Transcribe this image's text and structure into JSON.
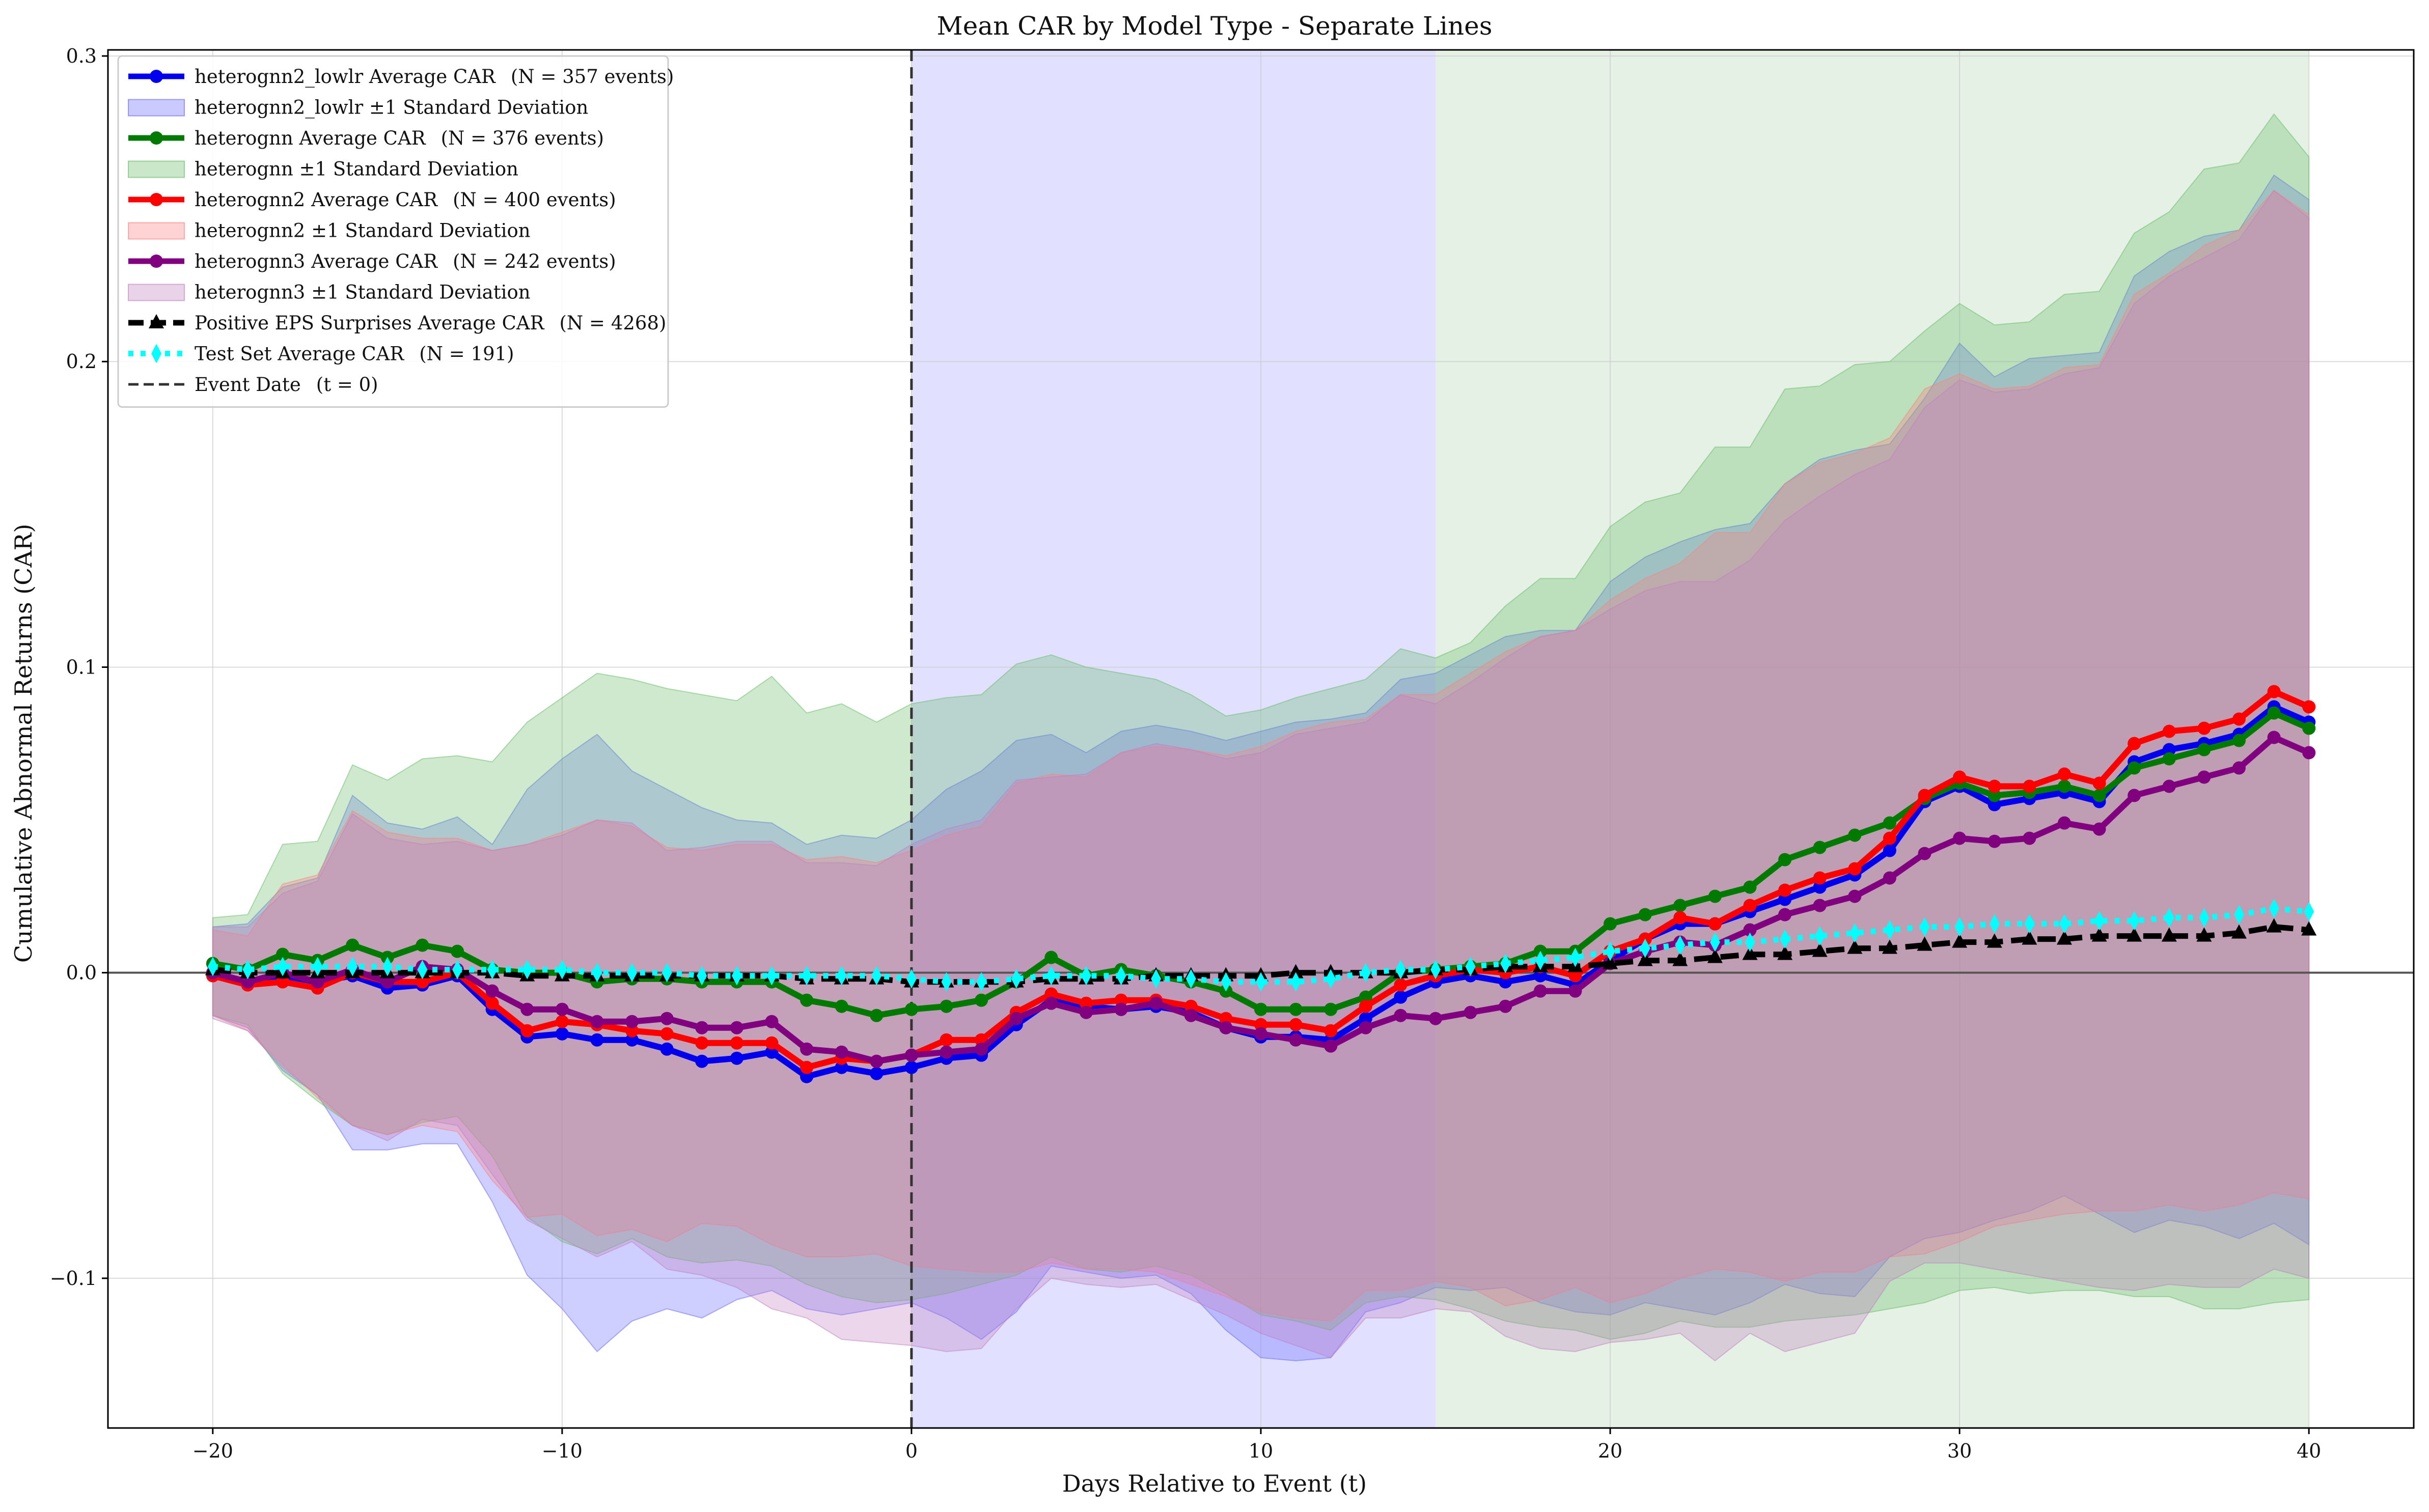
{
  "chart_data": {
    "type": "line",
    "title": "Mean CAR by Model Type - Separate Lines",
    "xlabel": "Days Relative to Event (t)",
    "ylabel": "Cumulative Abnormal Returns (CAR)",
    "xlim": [
      -23,
      43
    ],
    "ylim": [
      -0.149,
      0.302
    ],
    "xticks": [
      -20,
      -10,
      0,
      10,
      20,
      30,
      40
    ],
    "xtick_labels": [
      "−20",
      "−10",
      "0",
      "10",
      "20",
      "30",
      "40"
    ],
    "yticks": [
      -0.1,
      0.0,
      0.1,
      0.2,
      0.3
    ],
    "ytick_labels": [
      "−0.1",
      "0.0",
      "0.1",
      "0.2",
      "0.3"
    ],
    "grid": true,
    "legend_position": "top-left",
    "shaded_regions": [
      {
        "from": 0,
        "to": 15,
        "color": "#c9c9ff"
      },
      {
        "from": 15,
        "to": 40,
        "color": "#d0e6d0"
      }
    ],
    "event_line": {
      "x": 0,
      "label": "Event Date (t = 0)",
      "color": "#333333"
    },
    "x": [
      -20,
      -19,
      -18,
      -17,
      -16,
      -15,
      -14,
      -13,
      -12,
      -11,
      -10,
      -9,
      -8,
      -7,
      -6,
      -5,
      -4,
      -3,
      -2,
      -1,
      0,
      1,
      2,
      3,
      4,
      5,
      6,
      7,
      8,
      9,
      10,
      11,
      12,
      13,
      14,
      15,
      16,
      17,
      18,
      19,
      20,
      21,
      22,
      23,
      24,
      25,
      26,
      27,
      28,
      29,
      30,
      31,
      32,
      33,
      34,
      35,
      36,
      37,
      38,
      39,
      40
    ],
    "series": [
      {
        "name": "heterognn2_lowlr Average CAR",
        "n_label": "(N = 357 events)",
        "band_label": "heterognn2_lowlr ±1 Standard Deviation",
        "color": "#0000ee",
        "band_color": "#6666ff",
        "values": [
          0.0,
          -0.003,
          -0.002,
          -0.003,
          -0.001,
          -0.005,
          -0.004,
          -0.001,
          -0.012,
          -0.021,
          -0.02,
          -0.022,
          -0.022,
          -0.025,
          -0.029,
          -0.028,
          -0.026,
          -0.034,
          -0.031,
          -0.033,
          -0.031,
          -0.028,
          -0.027,
          -0.017,
          -0.009,
          -0.011,
          -0.012,
          -0.011,
          -0.013,
          -0.018,
          -0.021,
          -0.021,
          -0.022,
          -0.015,
          -0.008,
          -0.003,
          -0.001,
          -0.003,
          -0.001,
          -0.004,
          0.004,
          0.011,
          0.016,
          0.016,
          0.02,
          0.024,
          0.028,
          0.032,
          0.04,
          0.056,
          0.061,
          0.055,
          0.057,
          0.059,
          0.056,
          0.069,
          0.073,
          0.075,
          0.078,
          0.087,
          0.082
        ],
        "upper": [
          0.015,
          0.016,
          0.028,
          0.031,
          0.058,
          0.049,
          0.047,
          0.051,
          0.042,
          0.06,
          0.07,
          0.078,
          0.066,
          0.06,
          0.054,
          0.05,
          0.049,
          0.042,
          0.045,
          0.044,
          0.05,
          0.06,
          0.066,
          0.076,
          0.078,
          0.072,
          0.079,
          0.081,
          0.079,
          0.076,
          0.079,
          0.082,
          0.083,
          0.085,
          0.096,
          0.098,
          0.104,
          0.11,
          0.112,
          0.112,
          0.128,
          0.136,
          0.141,
          0.145,
          0.147,
          0.16,
          0.168,
          0.171,
          0.173,
          0.188,
          0.206,
          0.195,
          0.201,
          0.202,
          0.203,
          0.228,
          0.236,
          0.241,
          0.243,
          0.261,
          0.253
        ],
        "lower": [
          -0.014,
          -0.018,
          -0.032,
          -0.04,
          -0.058,
          -0.058,
          -0.056,
          -0.056,
          -0.075,
          -0.099,
          -0.11,
          -0.124,
          -0.114,
          -0.11,
          -0.113,
          -0.107,
          -0.104,
          -0.11,
          -0.112,
          -0.11,
          -0.108,
          -0.113,
          -0.12,
          -0.111,
          -0.096,
          -0.098,
          -0.1,
          -0.099,
          -0.105,
          -0.117,
          -0.126,
          -0.127,
          -0.126,
          -0.111,
          -0.108,
          -0.103,
          -0.104,
          -0.103,
          -0.108,
          -0.111,
          -0.112,
          -0.108,
          -0.11,
          -0.112,
          -0.108,
          -0.102,
          -0.105,
          -0.106,
          -0.093,
          -0.087,
          -0.085,
          -0.081,
          -0.078,
          -0.073,
          -0.079,
          -0.085,
          -0.081,
          -0.083,
          -0.087,
          -0.082,
          -0.089
        ]
      },
      {
        "name": "heterognn Average CAR",
        "n_label": "(N = 376 events)",
        "band_label": "heterognn ±1 Standard Deviation",
        "color": "#007a00",
        "band_color": "#66bb66",
        "values": [
          0.003,
          0.001,
          0.006,
          0.004,
          0.009,
          0.005,
          0.009,
          0.007,
          0.001,
          0.0,
          0.0,
          -0.003,
          -0.002,
          -0.002,
          -0.003,
          -0.003,
          -0.003,
          -0.009,
          -0.011,
          -0.014,
          -0.012,
          -0.011,
          -0.009,
          -0.003,
          0.005,
          -0.001,
          0.001,
          -0.001,
          -0.003,
          -0.006,
          -0.012,
          -0.012,
          -0.012,
          -0.008,
          0.0,
          0.001,
          0.002,
          0.003,
          0.007,
          0.007,
          0.016,
          0.019,
          0.022,
          0.025,
          0.028,
          0.037,
          0.041,
          0.045,
          0.049,
          0.057,
          0.062,
          0.058,
          0.059,
          0.061,
          0.058,
          0.067,
          0.07,
          0.073,
          0.076,
          0.085,
          0.08
        ],
        "upper": [
          0.018,
          0.019,
          0.042,
          0.043,
          0.068,
          0.063,
          0.07,
          0.071,
          0.069,
          0.082,
          0.09,
          0.098,
          0.096,
          0.093,
          0.091,
          0.089,
          0.097,
          0.085,
          0.088,
          0.082,
          0.088,
          0.09,
          0.091,
          0.101,
          0.104,
          0.1,
          0.098,
          0.096,
          0.091,
          0.084,
          0.086,
          0.09,
          0.093,
          0.096,
          0.106,
          0.103,
          0.108,
          0.12,
          0.129,
          0.129,
          0.146,
          0.154,
          0.157,
          0.172,
          0.172,
          0.191,
          0.192,
          0.199,
          0.2,
          0.21,
          0.219,
          0.212,
          0.213,
          0.222,
          0.223,
          0.242,
          0.249,
          0.263,
          0.265,
          0.281,
          0.267
        ],
        "lower": [
          -0.014,
          -0.017,
          -0.033,
          -0.042,
          -0.05,
          -0.053,
          -0.049,
          -0.047,
          -0.06,
          -0.08,
          -0.088,
          -0.092,
          -0.087,
          -0.093,
          -0.095,
          -0.094,
          -0.096,
          -0.102,
          -0.106,
          -0.108,
          -0.107,
          -0.105,
          -0.102,
          -0.099,
          -0.093,
          -0.097,
          -0.098,
          -0.096,
          -0.099,
          -0.105,
          -0.112,
          -0.114,
          -0.117,
          -0.108,
          -0.106,
          -0.107,
          -0.11,
          -0.114,
          -0.116,
          -0.117,
          -0.12,
          -0.118,
          -0.114,
          -0.116,
          -0.116,
          -0.114,
          -0.113,
          -0.112,
          -0.11,
          -0.108,
          -0.104,
          -0.103,
          -0.105,
          -0.104,
          -0.104,
          -0.106,
          -0.106,
          -0.11,
          -0.11,
          -0.108,
          -0.107
        ]
      },
      {
        "name": "heterognn2 Average CAR",
        "n_label": "(N = 400 events)",
        "band_label": "heterognn2 ±1 Standard Deviation",
        "color": "#ff0000",
        "band_color": "#ff8080",
        "values": [
          -0.001,
          -0.004,
          -0.003,
          -0.005,
          0.0,
          -0.003,
          -0.003,
          0.0,
          -0.01,
          -0.019,
          -0.016,
          -0.017,
          -0.019,
          -0.02,
          -0.023,
          -0.023,
          -0.023,
          -0.031,
          -0.028,
          -0.029,
          -0.027,
          -0.022,
          -0.022,
          -0.013,
          -0.007,
          -0.01,
          -0.009,
          -0.009,
          -0.011,
          -0.015,
          -0.017,
          -0.017,
          -0.019,
          -0.011,
          -0.004,
          -0.001,
          0.001,
          0.0,
          0.002,
          -0.001,
          0.007,
          0.011,
          0.018,
          0.016,
          0.022,
          0.027,
          0.031,
          0.034,
          0.044,
          0.058,
          0.064,
          0.061,
          0.061,
          0.065,
          0.062,
          0.075,
          0.079,
          0.08,
          0.083,
          0.092,
          0.087
        ],
        "upper": [
          0.014,
          0.012,
          0.029,
          0.032,
          0.053,
          0.046,
          0.044,
          0.044,
          0.04,
          0.042,
          0.046,
          0.05,
          0.048,
          0.041,
          0.04,
          0.042,
          0.042,
          0.037,
          0.038,
          0.036,
          0.04,
          0.045,
          0.048,
          0.062,
          0.065,
          0.064,
          0.072,
          0.074,
          0.073,
          0.071,
          0.074,
          0.079,
          0.082,
          0.083,
          0.091,
          0.091,
          0.098,
          0.105,
          0.11,
          0.112,
          0.122,
          0.129,
          0.134,
          0.144,
          0.144,
          0.16,
          0.167,
          0.17,
          0.175,
          0.191,
          0.196,
          0.191,
          0.192,
          0.198,
          0.199,
          0.222,
          0.229,
          0.238,
          0.243,
          0.256,
          0.248
        ],
        "lower": [
          -0.014,
          -0.019,
          -0.03,
          -0.041,
          -0.05,
          -0.053,
          -0.05,
          -0.052,
          -0.068,
          -0.08,
          -0.079,
          -0.086,
          -0.084,
          -0.088,
          -0.082,
          -0.083,
          -0.089,
          -0.093,
          -0.093,
          -0.092,
          -0.096,
          -0.097,
          -0.098,
          -0.098,
          -0.095,
          -0.097,
          -0.097,
          -0.098,
          -0.102,
          -0.106,
          -0.111,
          -0.113,
          -0.114,
          -0.104,
          -0.104,
          -0.101,
          -0.103,
          -0.109,
          -0.107,
          -0.103,
          -0.108,
          -0.105,
          -0.1,
          -0.097,
          -0.098,
          -0.101,
          -0.098,
          -0.098,
          -0.093,
          -0.092,
          -0.088,
          -0.083,
          -0.081,
          -0.079,
          -0.078,
          -0.078,
          -0.076,
          -0.078,
          -0.076,
          -0.072,
          -0.074
        ]
      },
      {
        "name": "heterognn3 Average CAR",
        "n_label": "(N = 242 events)",
        "band_label": "heterognn3 ±1 Standard Deviation",
        "color": "#800080",
        "band_color": "#c080c0",
        "values": [
          0.0,
          -0.003,
          0.0,
          -0.003,
          0.001,
          -0.003,
          0.002,
          0.001,
          -0.006,
          -0.012,
          -0.012,
          -0.016,
          -0.016,
          -0.015,
          -0.018,
          -0.018,
          -0.016,
          -0.025,
          -0.026,
          -0.029,
          -0.027,
          -0.026,
          -0.025,
          -0.015,
          -0.01,
          -0.013,
          -0.012,
          -0.01,
          -0.014,
          -0.018,
          -0.02,
          -0.022,
          -0.024,
          -0.018,
          -0.014,
          -0.015,
          -0.013,
          -0.011,
          -0.006,
          -0.006,
          0.003,
          0.007,
          0.01,
          0.009,
          0.014,
          0.019,
          0.022,
          0.025,
          0.031,
          0.039,
          0.044,
          0.043,
          0.044,
          0.049,
          0.047,
          0.058,
          0.061,
          0.064,
          0.067,
          0.077,
          0.072
        ],
        "upper": [
          0.015,
          0.015,
          0.026,
          0.03,
          0.052,
          0.044,
          0.042,
          0.043,
          0.04,
          0.042,
          0.045,
          0.05,
          0.049,
          0.04,
          0.041,
          0.043,
          0.043,
          0.036,
          0.036,
          0.035,
          0.042,
          0.047,
          0.05,
          0.063,
          0.064,
          0.065,
          0.072,
          0.075,
          0.073,
          0.07,
          0.072,
          0.078,
          0.08,
          0.082,
          0.091,
          0.088,
          0.095,
          0.103,
          0.11,
          0.112,
          0.119,
          0.125,
          0.128,
          0.128,
          0.135,
          0.148,
          0.156,
          0.163,
          0.168,
          0.185,
          0.194,
          0.19,
          0.191,
          0.196,
          0.198,
          0.219,
          0.228,
          0.234,
          0.24,
          0.256,
          0.247
        ],
        "lower": [
          -0.015,
          -0.019,
          -0.031,
          -0.04,
          -0.05,
          -0.055,
          -0.048,
          -0.05,
          -0.066,
          -0.081,
          -0.087,
          -0.093,
          -0.088,
          -0.097,
          -0.099,
          -0.103,
          -0.11,
          -0.113,
          -0.12,
          -0.121,
          -0.122,
          -0.124,
          -0.123,
          -0.11,
          -0.1,
          -0.102,
          -0.103,
          -0.102,
          -0.107,
          -0.112,
          -0.118,
          -0.122,
          -0.126,
          -0.113,
          -0.113,
          -0.11,
          -0.111,
          -0.119,
          -0.123,
          -0.124,
          -0.121,
          -0.12,
          -0.118,
          -0.127,
          -0.118,
          -0.124,
          -0.121,
          -0.118,
          -0.101,
          -0.095,
          -0.095,
          -0.097,
          -0.099,
          -0.101,
          -0.103,
          -0.104,
          -0.102,
          -0.103,
          -0.103,
          -0.097,
          -0.1
        ]
      },
      {
        "name": "Positive EPS Surprises Average CAR",
        "n_label": "(N = 4268)",
        "color": "#000000",
        "marker": "triangle",
        "dash": "dashed",
        "values": [
          0.001,
          0.0,
          0.0,
          0.0,
          0.0,
          0.0,
          0.0,
          0.0,
          0.0,
          -0.001,
          -0.001,
          -0.001,
          -0.001,
          -0.001,
          -0.001,
          -0.001,
          -0.001,
          -0.002,
          -0.002,
          -0.002,
          -0.003,
          -0.003,
          -0.003,
          -0.003,
          -0.002,
          -0.002,
          -0.002,
          -0.001,
          -0.001,
          -0.001,
          -0.001,
          0.0,
          0.0,
          0.0,
          0.0,
          0.001,
          0.001,
          0.002,
          0.002,
          0.002,
          0.003,
          0.004,
          0.004,
          0.005,
          0.006,
          0.006,
          0.007,
          0.008,
          0.008,
          0.009,
          0.01,
          0.01,
          0.011,
          0.011,
          0.012,
          0.012,
          0.012,
          0.012,
          0.013,
          0.015,
          0.014
        ]
      },
      {
        "name": "Test Set Average CAR",
        "n_label": "(N = 191)",
        "color": "#00ffff",
        "marker": "diamond",
        "dash": "dotted",
        "values": [
          0.002,
          0.001,
          0.002,
          0.002,
          0.002,
          0.002,
          0.001,
          0.001,
          0.001,
          0.001,
          0.001,
          0.0,
          0.0,
          0.0,
          -0.001,
          -0.001,
          -0.001,
          -0.001,
          -0.001,
          -0.001,
          -0.002,
          -0.003,
          -0.003,
          -0.002,
          -0.001,
          -0.001,
          -0.001,
          -0.002,
          -0.002,
          -0.003,
          -0.003,
          -0.003,
          -0.002,
          0.0,
          0.001,
          0.001,
          0.002,
          0.003,
          0.004,
          0.005,
          0.007,
          0.008,
          0.009,
          0.01,
          0.01,
          0.011,
          0.012,
          0.013,
          0.014,
          0.015,
          0.015,
          0.016,
          0.016,
          0.016,
          0.017,
          0.017,
          0.018,
          0.018,
          0.019,
          0.021,
          0.02
        ]
      }
    ],
    "legend_entries": [
      {
        "kind": "line",
        "label": "heterognn2_lowlr Average CAR",
        "n": "(N = 357 events)",
        "color": "#0000ee",
        "marker": "circle"
      },
      {
        "kind": "band",
        "label": "heterognn2_lowlr ±1 Standard Deviation",
        "n": "",
        "color": "#6666ff"
      },
      {
        "kind": "line",
        "label": "heterognn Average CAR",
        "n": "(N = 376 events)",
        "color": "#007a00",
        "marker": "circle"
      },
      {
        "kind": "band",
        "label": "heterognn ±1 Standard Deviation",
        "n": "",
        "color": "#66bb66"
      },
      {
        "kind": "line",
        "label": "heterognn2 Average CAR",
        "n": "(N = 400 events)",
        "color": "#ff0000",
        "marker": "circle"
      },
      {
        "kind": "band",
        "label": "heterognn2 ±1 Standard Deviation",
        "n": "",
        "color": "#ff8080"
      },
      {
        "kind": "line",
        "label": "heterognn3 Average CAR",
        "n": "(N = 242 events)",
        "color": "#800080",
        "marker": "circle"
      },
      {
        "kind": "band",
        "label": "heterognn3 ±1 Standard Deviation",
        "n": "",
        "color": "#c080c0"
      },
      {
        "kind": "line",
        "label": "Positive EPS Surprises Average CAR",
        "n": "(N = 4268)",
        "color": "#000000",
        "marker": "triangle",
        "dash": "dashed"
      },
      {
        "kind": "line",
        "label": "Test Set Average CAR",
        "n": "(N = 191)",
        "color": "#00ffff",
        "marker": "diamond",
        "dash": "dotted"
      },
      {
        "kind": "line",
        "label": "Event Date",
        "n": "(t = 0)",
        "color": "#333333",
        "marker": "none",
        "dash": "dashed"
      }
    ]
  }
}
